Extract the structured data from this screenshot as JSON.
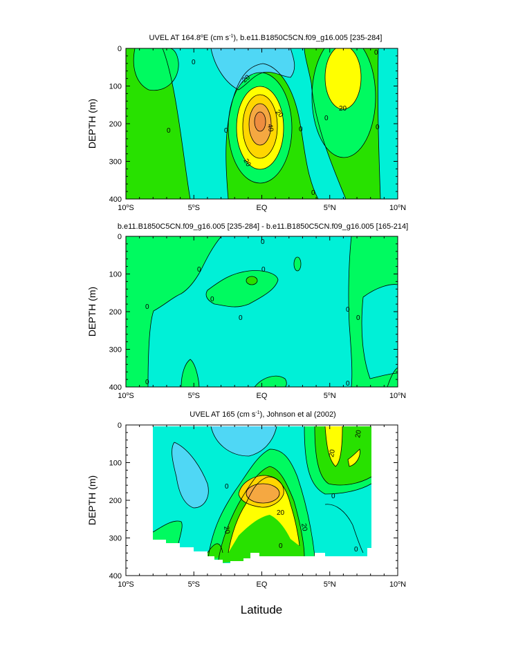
{
  "colors": {
    "c_m30": "#4fd7f5",
    "c_m15": "#00f0d7",
    "c_0": "#00fa60",
    "c_15": "#28e100",
    "c_30": "#ffff00",
    "c_45": "#ffd600",
    "c_60": "#f5a841",
    "c_75": "#ee8d3f"
  },
  "xlabel": "Latitude",
  "chart_data": [
    {
      "type": "contour",
      "title_main": "UVEL AT 164.8",
      "title_sup1": "o",
      "title_mid": "E (cm s",
      "title_sup2": "-1",
      "title_rest": "), b.e11.B1850C5CN.f09_g16.005 [235-284]",
      "ylabel": "DEPTH (m)",
      "ylim": [
        400,
        0
      ],
      "xlim": [
        -10,
        10
      ],
      "xticks": [
        "10",
        "5",
        "EQ",
        "5",
        "10"
      ],
      "xtick_hemi": [
        "S",
        "S",
        "",
        "N",
        "N"
      ],
      "yticks": [
        "0",
        "100",
        "200",
        "300",
        "400"
      ],
      "contour_labels": [
        "-20",
        "20",
        "40",
        "20",
        "20",
        "0",
        "0",
        "0",
        "0",
        "0",
        "0",
        "0",
        "0",
        "0",
        "0"
      ]
    },
    {
      "type": "contour",
      "title_main": "b.e11.B1850C5CN.f09_g16.005 [235-284] - b.e11.B1850C5CN.f09_g16.005 [165-214]",
      "ylabel": "DEPTH (m)",
      "ylim": [
        400,
        0
      ],
      "xlim": [
        -10,
        10
      ],
      "xticks": [
        "10",
        "5",
        "EQ",
        "5",
        "10"
      ],
      "xtick_hemi": [
        "S",
        "S",
        "",
        "N",
        "N"
      ],
      "yticks": [
        "0",
        "100",
        "200",
        "300",
        "400"
      ],
      "contour_labels": [
        "0",
        "0",
        "0",
        "0",
        "0",
        "0",
        "0",
        "0",
        "0",
        "0",
        "0"
      ]
    },
    {
      "type": "contour",
      "title_main": "UVEL AT 165 (cm s",
      "title_sup2": "-1",
      "title_rest": "), Johnson et al (2002)",
      "ylabel": "DEPTH (m)",
      "ylim": [
        400,
        0
      ],
      "xlim": [
        -10,
        10
      ],
      "xticks": [
        "10",
        "5",
        "EQ",
        "5",
        "10"
      ],
      "xtick_hemi": [
        "S",
        "S",
        "",
        "N",
        "N"
      ],
      "yticks": [
        "0",
        "100",
        "200",
        "300",
        "400"
      ],
      "contour_labels": [
        "20",
        "20",
        "20",
        "20",
        "20",
        "0",
        "0",
        "0",
        "0"
      ]
    }
  ]
}
